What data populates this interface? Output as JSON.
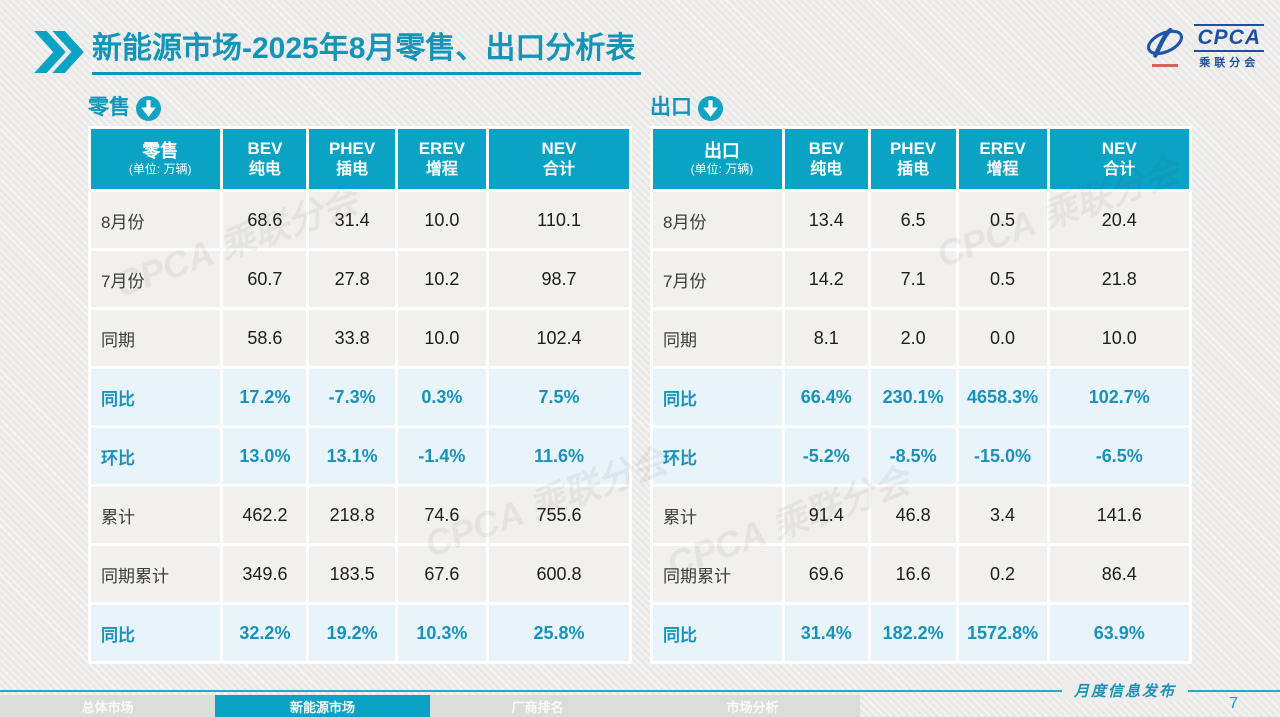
{
  "page": {
    "title": {
      "bold": "新能源市场",
      "rest": "-2025年8月零售、出口分析表"
    },
    "logo": {
      "acronym": "CPCA",
      "name": "乘联分会"
    },
    "watermark": "CPCA 乘联分会",
    "footer": {
      "banner": "月度信息发布",
      "page_number": "7"
    },
    "nav_tabs": [
      {
        "label": "总体市场",
        "active": false
      },
      {
        "label": "新能源市场",
        "active": true
      },
      {
        "label": "厂商排名",
        "active": false
      },
      {
        "label": "市场分析",
        "active": false
      }
    ]
  },
  "colors": {
    "brand_teal": "#0ba3c4",
    "title_teal": "#1495b8",
    "pct_text": "#1892ba",
    "pct_row_bg": "#e9f4fa",
    "row_bg": "#f1f0ed",
    "logo_blue": "#1f4fa0",
    "page_bg": "#eeedeb"
  },
  "chart_data": [
    {
      "type": "table",
      "title": "零售",
      "unit": "(单位: 万辆)",
      "columns": [
        {
          "en": "BEV",
          "cn": "纯电"
        },
        {
          "en": "PHEV",
          "cn": "插电"
        },
        {
          "en": "EREV",
          "cn": "增程"
        },
        {
          "en": "NEV",
          "cn": "合计"
        }
      ],
      "rows": [
        {
          "label": "8月份",
          "values": [
            "68.6",
            "31.4",
            "10.0",
            "110.1"
          ],
          "highlight": false
        },
        {
          "label": "7月份",
          "values": [
            "60.7",
            "27.8",
            "10.2",
            "98.7"
          ],
          "highlight": false
        },
        {
          "label": "同期",
          "values": [
            "58.6",
            "33.8",
            "10.0",
            "102.4"
          ],
          "highlight": false
        },
        {
          "label": "同比",
          "values": [
            "17.2%",
            "-7.3%",
            "0.3%",
            "7.5%"
          ],
          "highlight": true
        },
        {
          "label": "环比",
          "values": [
            "13.0%",
            "13.1%",
            "-1.4%",
            "11.6%"
          ],
          "highlight": true
        },
        {
          "label": "累计",
          "values": [
            "462.2",
            "218.8",
            "74.6",
            "755.6"
          ],
          "highlight": false
        },
        {
          "label": "同期累计",
          "values": [
            "349.6",
            "183.5",
            "67.6",
            "600.8"
          ],
          "highlight": false
        },
        {
          "label": "同比",
          "values": [
            "32.2%",
            "19.2%",
            "10.3%",
            "25.8%"
          ],
          "highlight": true
        }
      ]
    },
    {
      "type": "table",
      "title": "出口",
      "unit": "(单位: 万辆)",
      "columns": [
        {
          "en": "BEV",
          "cn": "纯电"
        },
        {
          "en": "PHEV",
          "cn": "插电"
        },
        {
          "en": "EREV",
          "cn": "增程"
        },
        {
          "en": "NEV",
          "cn": "合计"
        }
      ],
      "rows": [
        {
          "label": "8月份",
          "values": [
            "13.4",
            "6.5",
            "0.5",
            "20.4"
          ],
          "highlight": false
        },
        {
          "label": "7月份",
          "values": [
            "14.2",
            "7.1",
            "0.5",
            "21.8"
          ],
          "highlight": false
        },
        {
          "label": "同期",
          "values": [
            "8.1",
            "2.0",
            "0.0",
            "10.0"
          ],
          "highlight": false
        },
        {
          "label": "同比",
          "values": [
            "66.4%",
            "230.1%",
            "4658.3%",
            "102.7%"
          ],
          "highlight": true
        },
        {
          "label": "环比",
          "values": [
            "-5.2%",
            "-8.5%",
            "-15.0%",
            "-6.5%"
          ],
          "highlight": true
        },
        {
          "label": "累计",
          "values": [
            "91.4",
            "46.8",
            "3.4",
            "141.6"
          ],
          "highlight": false
        },
        {
          "label": "同期累计",
          "values": [
            "69.6",
            "16.6",
            "0.2",
            "86.4"
          ],
          "highlight": false
        },
        {
          "label": "同比",
          "values": [
            "31.4%",
            "182.2%",
            "1572.8%",
            "63.9%"
          ],
          "highlight": true
        }
      ]
    }
  ]
}
